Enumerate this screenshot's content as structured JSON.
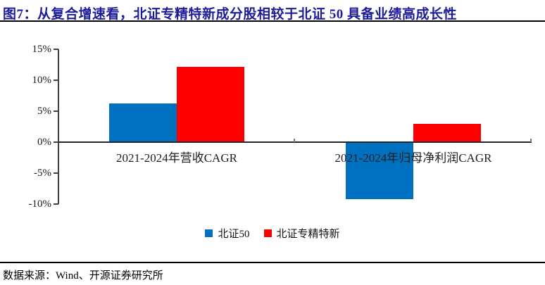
{
  "header": {
    "title": "图7：从复合增速看，北证专精特新成分股相较于北证 50 具备业绩高成长性"
  },
  "footer": {
    "source": "数据来源：Wind、开源证券研究所"
  },
  "colors": {
    "title": "#1c1c9b",
    "rule": "#000000",
    "axis": "#404040",
    "zero_line": "#262626",
    "bar_blue": "#0070C0",
    "bar_red": "#FF0000"
  },
  "chart_data": {
    "type": "bar",
    "title": "",
    "categories": [
      "2021-2024年营收CAGR",
      "2021-2024年归母净利润CAGR"
    ],
    "series": [
      {
        "name": "北证50",
        "color": "#0070C0",
        "values": [
          6.2,
          -9.2
        ]
      },
      {
        "name": "北证专精特新",
        "color": "#FF0000",
        "values": [
          12.2,
          3.0
        ]
      }
    ],
    "xlabel": "",
    "ylabel": "",
    "ylim": [
      -10,
      15
    ],
    "yticks": [
      15,
      10,
      5,
      0,
      -5,
      -10
    ],
    "ytick_suffix": "%",
    "grid": false,
    "legend_position": "bottom"
  }
}
